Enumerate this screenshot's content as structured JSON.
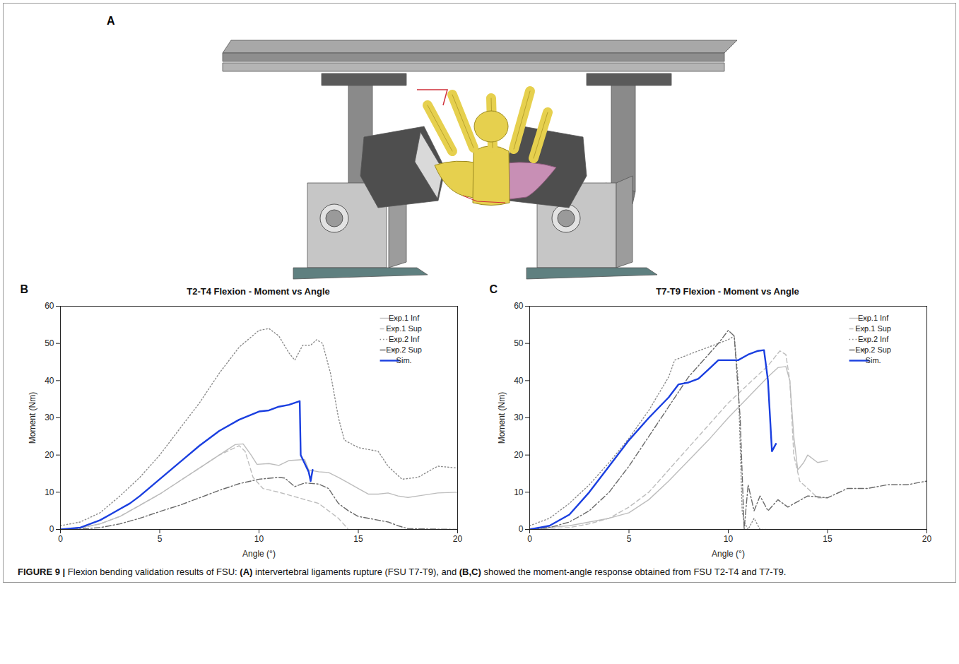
{
  "panel_a": {
    "label": "A"
  },
  "chart_data": [
    {
      "panel": "B",
      "type": "line",
      "title": "T2-T4 Flexion - Moment vs Angle",
      "x_label": "Angle (°)",
      "y_label": "Moment (Nm)",
      "xlim": [
        0,
        20
      ],
      "xticks": [
        0,
        5,
        10,
        15,
        20
      ],
      "ylim": [
        0,
        60
      ],
      "yticks": [
        0,
        10,
        20,
        30,
        40,
        50,
        60
      ],
      "grid": false,
      "legend": "top-right",
      "series": [
        {
          "name": "Exp.1 Inf",
          "color": "#bdbdbd",
          "line_style": "solid",
          "x": [
            0,
            1,
            2,
            3,
            4,
            5,
            6,
            7,
            8,
            8.8,
            9.2,
            9.6,
            9.9,
            10.5,
            11,
            11.5,
            12.3,
            12.5,
            13,
            13.5,
            14,
            14.5,
            15,
            15.5,
            16,
            16.5,
            17,
            17.5,
            18,
            19,
            20
          ],
          "values": [
            0,
            0.5,
            1.5,
            3.5,
            6.5,
            9.5,
            13,
            16.5,
            20,
            22.8,
            23,
            20,
            17.5,
            17.7,
            17.2,
            18.5,
            18.8,
            16,
            15.5,
            15.3,
            14,
            12.5,
            11,
            9.5,
            9.5,
            9.8,
            9,
            8.6,
            9,
            9.8,
            10
          ]
        },
        {
          "name": "Exp.1 Sup",
          "color": "#bdbdbd",
          "line_style": "dashed",
          "x": [
            0,
            1,
            2,
            3,
            4,
            5,
            6,
            7,
            8,
            9,
            9.3,
            9.7,
            10.2,
            11,
            12,
            13,
            13.5,
            14,
            14.5
          ],
          "values": [
            0,
            0.3,
            1.5,
            3.5,
            6.5,
            9.5,
            13,
            16.5,
            20,
            22.5,
            21,
            14,
            11,
            10,
            8.5,
            7,
            5,
            3,
            0
          ]
        },
        {
          "name": "Exp.2 Inf",
          "color": "#8a8a8a",
          "line_style": "dotted",
          "x": [
            0,
            1,
            2,
            3,
            4,
            5,
            6,
            7,
            8,
            9,
            10,
            10.5,
            11,
            11.5,
            11.8,
            12.2,
            12.6,
            12.9,
            13.2,
            13.6,
            14,
            14.3,
            15,
            16,
            16.5,
            17.2,
            18,
            19,
            20
          ],
          "values": [
            1,
            2,
            4.5,
            9,
            14,
            20,
            27,
            34,
            42,
            49,
            53.5,
            54,
            52,
            47.5,
            45.5,
            49.5,
            49.5,
            51,
            50,
            42,
            30,
            24,
            22,
            21,
            17,
            13.5,
            14,
            17,
            16.5
          ]
        },
        {
          "name": "Exp.2 Sup",
          "color": "#6a6a6a",
          "line_style": "dashdot",
          "x": [
            0,
            1,
            2,
            3,
            4,
            5,
            6,
            7,
            8,
            9,
            10,
            11,
            11.3,
            11.8,
            12.3,
            13,
            13.5,
            14,
            14.5,
            15,
            16,
            16.5,
            17,
            17.5,
            20
          ],
          "values": [
            0,
            0.1,
            0.5,
            1.5,
            3,
            4.8,
            6.5,
            8.5,
            10.5,
            12.3,
            13.5,
            14,
            13.8,
            11.5,
            12.5,
            12.2,
            11,
            7,
            5,
            3.5,
            2.5,
            2,
            1,
            0.2,
            0
          ]
        },
        {
          "name": "Sim.",
          "color": "#1a3fe0",
          "line_style": "solid",
          "x": [
            0,
            1,
            1.5,
            2,
            2.5,
            3,
            3.5,
            4,
            5,
            6,
            7,
            8,
            9,
            10,
            10.5,
            11,
            11.5,
            12.05,
            12.1,
            12.5,
            12.6,
            12.7
          ],
          "values": [
            0,
            0.5,
            1.5,
            2.5,
            4,
            5.5,
            7,
            9,
            13.5,
            18,
            22.5,
            26.5,
            29.5,
            31.7,
            32,
            33,
            33.5,
            34.5,
            20,
            15.5,
            13,
            16
          ]
        }
      ]
    },
    {
      "panel": "C",
      "type": "line",
      "title": "T7-T9 Flexion - Moment vs Angle",
      "x_label": "Angle (°)",
      "y_label": "Moment (Nm)",
      "xlim": [
        0,
        20
      ],
      "xticks": [
        0,
        5,
        10,
        15,
        20
      ],
      "ylim": [
        0,
        60
      ],
      "yticks": [
        0,
        10,
        20,
        30,
        40,
        50,
        60
      ],
      "grid": false,
      "legend": "top-right",
      "series": [
        {
          "name": "Exp.1 Inf",
          "color": "#bdbdbd",
          "line_style": "solid",
          "x": [
            0,
            2,
            3,
            4,
            5,
            6,
            7,
            8,
            9,
            10,
            11,
            12,
            12.5,
            12.9,
            13.1,
            13.3,
            13.5,
            13.8,
            14,
            14.5,
            15
          ],
          "values": [
            0.2,
            1,
            2,
            3,
            4.5,
            8,
            13,
            18.5,
            24,
            30,
            35.5,
            41,
            43.5,
            43.8,
            40,
            25,
            16,
            18,
            20,
            18,
            18.5
          ]
        },
        {
          "name": "Exp.1 Sup",
          "color": "#bdbdbd",
          "line_style": "dashed",
          "x": [
            0,
            2,
            3,
            4,
            5,
            6,
            7,
            8,
            9,
            10,
            11,
            12,
            12.6,
            12.9,
            13.1,
            13.3,
            13.6,
            14,
            14.5,
            15
          ],
          "values": [
            0,
            0.5,
            1.5,
            3,
            6,
            10,
            16,
            22,
            28,
            34,
            39,
            44,
            48,
            47,
            40,
            20,
            13,
            11,
            8.5,
            8.5
          ]
        },
        {
          "name": "Exp.2 Inf",
          "color": "#8a8a8a",
          "line_style": "dotted",
          "x": [
            0,
            1,
            2,
            3,
            4,
            5,
            6,
            7,
            7.3,
            8,
            9,
            9.5,
            10,
            10.3,
            10.5,
            10.7,
            10.8,
            11,
            11.3,
            11.6,
            12
          ],
          "values": [
            1,
            3,
            7,
            12,
            18,
            24.5,
            32,
            41,
            45.5,
            47,
            49,
            50,
            51,
            52,
            40,
            5,
            2,
            0,
            3,
            0,
            0
          ]
        },
        {
          "name": "Exp.2 Sup",
          "color": "#6a6a6a",
          "line_style": "dashdot",
          "x": [
            0,
            1,
            2,
            3,
            4,
            5,
            6,
            7,
            8,
            9,
            9.5,
            10,
            10.3,
            10.6,
            10.8,
            11,
            11.3,
            11.6,
            12,
            12.5,
            13,
            14,
            15,
            16,
            17,
            18,
            19,
            20
          ],
          "values": [
            0,
            0.5,
            2,
            5,
            10,
            17,
            25,
            33,
            41,
            47,
            50,
            53.5,
            52,
            30,
            0,
            12,
            5,
            9,
            5,
            8,
            6,
            9,
            8.5,
            11,
            11,
            12,
            12,
            13
          ]
        },
        {
          "name": "Sim.",
          "color": "#1a3fe0",
          "line_style": "solid",
          "x": [
            0,
            1,
            2,
            3,
            4,
            5,
            6,
            7,
            7.5,
            8,
            8.5,
            9,
            9.5,
            10,
            10.5,
            11,
            11.5,
            11.8,
            12,
            12.2,
            12.4
          ],
          "values": [
            0,
            1,
            4,
            10,
            17,
            24,
            30,
            35.5,
            39,
            39.5,
            40.5,
            43,
            45.5,
            45.5,
            45.5,
            47,
            48,
            48.2,
            40,
            21,
            23
          ]
        }
      ]
    }
  ],
  "caption": [
    {
      "text": "FIGURE 9 | ",
      "bold": true
    },
    {
      "text": "Flexion bending validation results of FSU: ",
      "bold": false
    },
    {
      "text": "(A)",
      "bold": true
    },
    {
      "text": " intervertebral ligaments rupture (FSU T7-T9), and ",
      "bold": false
    },
    {
      "text": "(B,C)",
      "bold": true
    },
    {
      "text": " showed the moment-angle response obtained from FSU T2-T4 and T7-T9.",
      "bold": false
    }
  ]
}
